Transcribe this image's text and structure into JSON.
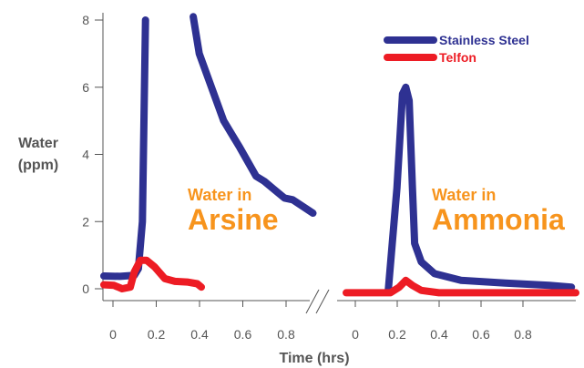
{
  "chart_data": {
    "type": "line",
    "ylabel": [
      "Water",
      "(ppm)"
    ],
    "xlabel": "Time (hrs)",
    "ylim": [
      0,
      8
    ],
    "y_ticks": [
      "0",
      "2",
      "4",
      "6",
      "8"
    ],
    "colors": {
      "stainless": "#2e3192",
      "teflon": "#ed1c24",
      "annotation": "#f7941d",
      "axis": "#555555"
    },
    "legend": {
      "position": "top-right",
      "entries": [
        {
          "label": "Stainless Steel",
          "color": "#2e3192"
        },
        {
          "label": "Telfon",
          "color": "#ed1c24"
        }
      ]
    },
    "panels": [
      {
        "annotation_small": "Water in",
        "annotation_big": "Arsine",
        "x_ticks": [
          "0",
          "0.2",
          "0.4",
          "0.6",
          "0.8"
        ],
        "xlim": [
          -0.03,
          1.02
        ],
        "series": [
          {
            "name": "Stainless Steel",
            "color": "#2e3192",
            "segments": [
              [
                [
                  -0.03,
                  0.38
                ],
                [
                  0.05,
                  0.37
                ],
                [
                  0.12,
                  0.4
                ],
                [
                  0.14,
                  0.6
                ],
                [
                  0.16,
                  2.0
                ],
                [
                  0.175,
                  8.0
                ]
              ],
              [
                [
                  0.41,
                  8.1
                ],
                [
                  0.44,
                  7.0
                ],
                [
                  0.5,
                  6.0
                ],
                [
                  0.56,
                  5.0
                ],
                [
                  0.64,
                  4.2
                ],
                [
                  0.72,
                  3.35
                ],
                [
                  0.76,
                  3.2
                ],
                [
                  0.8,
                  3.0
                ],
                [
                  0.86,
                  2.7
                ],
                [
                  0.9,
                  2.65
                ],
                [
                  1.0,
                  2.25
                ]
              ]
            ]
          },
          {
            "name": "Telfon",
            "color": "#ed1c24",
            "segments": [
              [
                [
                  -0.03,
                  0.12
                ],
                [
                  0.02,
                  0.1
                ],
                [
                  0.06,
                  0.0
                ],
                [
                  0.1,
                  0.05
                ],
                [
                  0.12,
                  0.5
                ],
                [
                  0.15,
                  0.85
                ],
                [
                  0.18,
                  0.85
                ],
                [
                  0.22,
                  0.65
                ],
                [
                  0.27,
                  0.3
                ],
                [
                  0.32,
                  0.22
                ],
                [
                  0.38,
                  0.2
                ],
                [
                  0.43,
                  0.15
                ],
                [
                  0.45,
                  0.05
                ]
              ]
            ]
          }
        ]
      },
      {
        "annotation_small": "Water in",
        "annotation_big": "Ammonia",
        "x_ticks": [
          "0",
          "0.2",
          "0.4",
          "0.6",
          "0.8"
        ],
        "xlim": [
          -0.02,
          1.02
        ],
        "series": [
          {
            "name": "Stainless Steel",
            "color": "#2e3192",
            "segments": [
              [
                [
                  0.17,
                  -0.1
                ],
                [
                  0.21,
                  3.0
                ],
                [
                  0.235,
                  5.8
                ],
                [
                  0.25,
                  6.0
                ],
                [
                  0.265,
                  5.6
                ],
                [
                  0.28,
                  3.0
                ],
                [
                  0.29,
                  1.35
                ],
                [
                  0.32,
                  0.8
                ],
                [
                  0.38,
                  0.45
                ],
                [
                  0.5,
                  0.25
                ],
                [
                  0.7,
                  0.17
                ],
                [
                  0.9,
                  0.1
                ],
                [
                  1.0,
                  0.05
                ]
              ]
            ]
          },
          {
            "name": "Telfon",
            "color": "#ed1c24",
            "segments": [
              [
                [
                  -0.02,
                  -0.12
                ],
                [
                  0.18,
                  -0.12
                ],
                [
                  0.22,
                  0.05
                ],
                [
                  0.25,
                  0.25
                ],
                [
                  0.28,
                  0.1
                ],
                [
                  0.32,
                  -0.05
                ],
                [
                  0.4,
                  -0.12
                ],
                [
                  1.02,
                  -0.12
                ]
              ]
            ]
          }
        ]
      }
    ]
  }
}
